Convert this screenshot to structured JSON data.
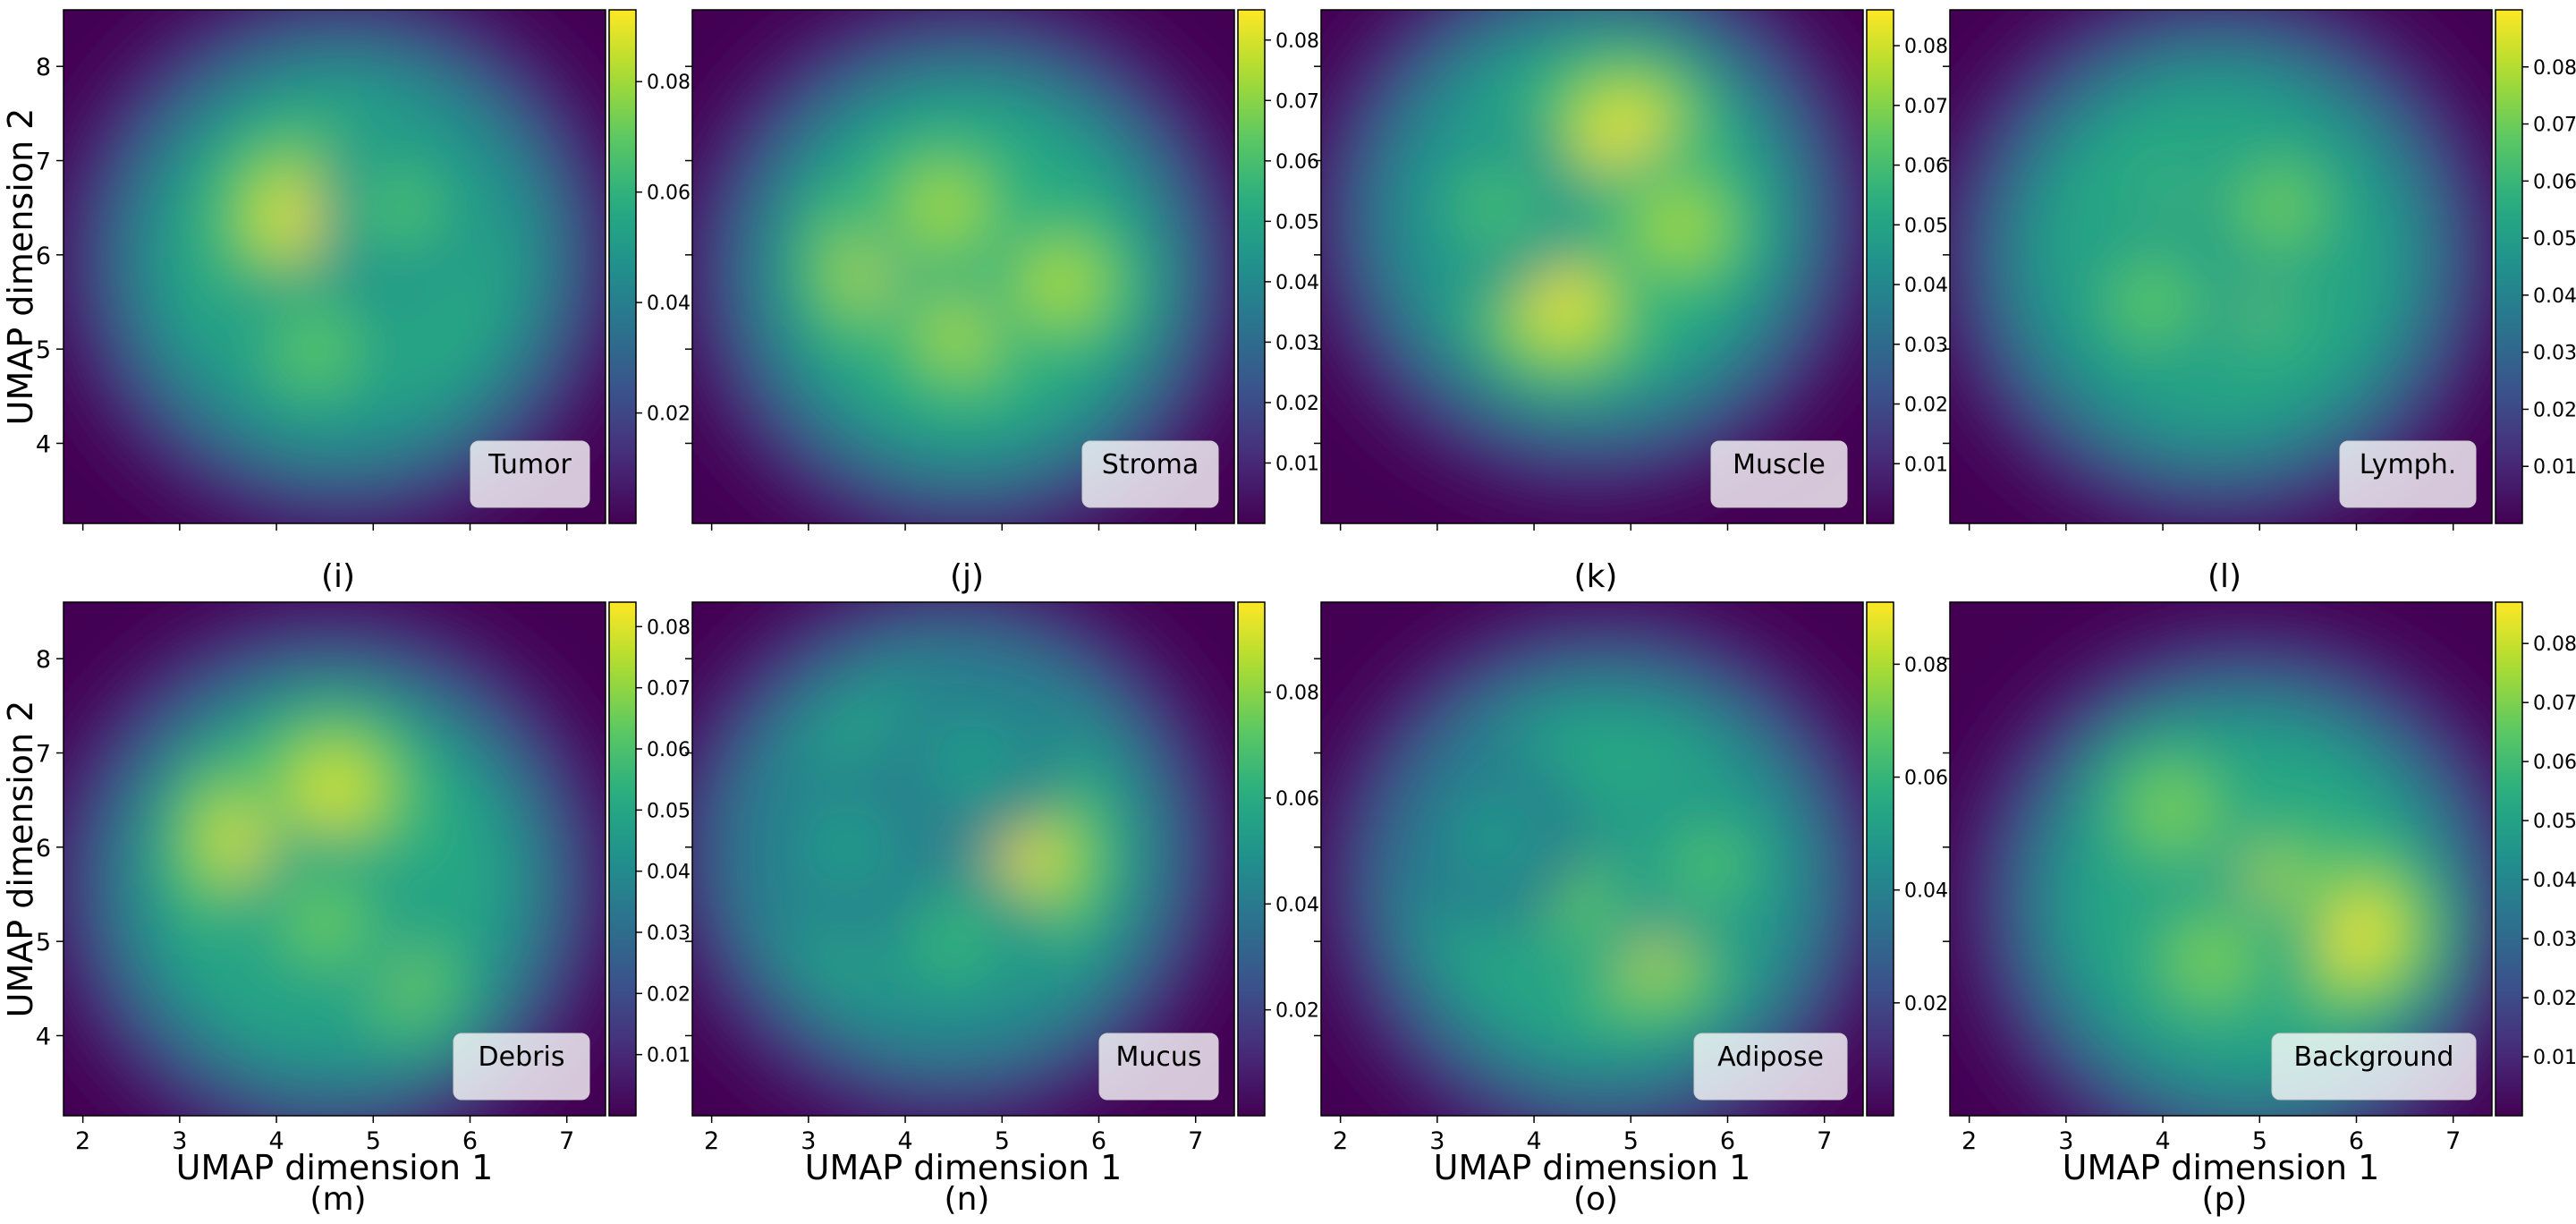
{
  "figure": {
    "panel_captions": [
      "(i)",
      "(j)",
      "(k)",
      "(l)",
      "(m)",
      "(n)",
      "(o)",
      "(p)"
    ]
  },
  "colormap": {
    "name": "viridis",
    "stops": [
      "#440154",
      "#472c7a",
      "#3b518b",
      "#2c718e",
      "#21908d",
      "#27ad81",
      "#5cc863",
      "#aadc32",
      "#fde725"
    ]
  },
  "chart_data": [
    {
      "type": "heatmap",
      "label": "Tumor",
      "caption": "(i)",
      "xlabel": "",
      "ylabel": "UMAP dimension 2",
      "xlim": [
        1.8,
        7.4
      ],
      "ylim": [
        3.15,
        8.6
      ],
      "xticks": [
        "2",
        "3",
        "4",
        "5",
        "6",
        "7"
      ],
      "yticks": [
        "4",
        "5",
        "6",
        "7",
        "8"
      ],
      "colorbar": {
        "min": 0.0,
        "max": 0.093,
        "ticks": [
          "0.02",
          "0.04",
          "0.06",
          "0.08"
        ]
      },
      "density_peaks": [
        {
          "x": 4.3,
          "y": 6.4,
          "value": 0.093
        },
        {
          "x": 4.4,
          "y": 5.0,
          "value": 0.07
        },
        {
          "x": 5.3,
          "y": 6.5,
          "value": 0.066
        }
      ]
    },
    {
      "type": "heatmap",
      "label": "Stroma",
      "caption": "(j)",
      "xlabel": "",
      "ylabel": "",
      "xlim": [
        1.8,
        7.4
      ],
      "ylim": [
        3.15,
        8.6
      ],
      "xticks": [
        "2",
        "3",
        "4",
        "5",
        "6",
        "7"
      ],
      "yticks": [
        "4",
        "5",
        "6",
        "7",
        "8"
      ],
      "colorbar": {
        "min": 0.0,
        "max": 0.085,
        "ticks": [
          "0.01",
          "0.02",
          "0.03",
          "0.04",
          "0.05",
          "0.06",
          "0.07",
          "0.08"
        ]
      },
      "density_peaks": [
        {
          "x": 3.9,
          "y": 5.9,
          "value": 0.085
        },
        {
          "x": 4.6,
          "y": 5.2,
          "value": 0.075
        },
        {
          "x": 5.6,
          "y": 5.7,
          "value": 0.075
        },
        {
          "x": 4.4,
          "y": 6.5,
          "value": 0.074
        }
      ]
    },
    {
      "type": "heatmap",
      "label": "Muscle",
      "caption": "(k)",
      "xlabel": "",
      "ylabel": "",
      "xlim": [
        1.8,
        7.4
      ],
      "ylim": [
        3.15,
        8.6
      ],
      "xticks": [
        "2",
        "3",
        "4",
        "5",
        "6",
        "7"
      ],
      "yticks": [
        "4",
        "5",
        "6",
        "7",
        "8"
      ],
      "colorbar": {
        "min": 0.0,
        "max": 0.086,
        "ticks": [
          "0.01",
          "0.02",
          "0.03",
          "0.04",
          "0.05",
          "0.06",
          "0.07",
          "0.08"
        ]
      },
      "density_peaks": [
        {
          "x": 4.95,
          "y": 7.25,
          "value": 0.086
        },
        {
          "x": 4.3,
          "y": 5.5,
          "value": 0.084
        },
        {
          "x": 5.5,
          "y": 6.3,
          "value": 0.075
        },
        {
          "x": 3.6,
          "y": 6.5,
          "value": 0.06
        }
      ]
    },
    {
      "type": "heatmap",
      "label": "Lymph.",
      "caption": "(l)",
      "xlabel": "",
      "ylabel": "",
      "xlim": [
        1.8,
        7.4
      ],
      "ylim": [
        3.15,
        8.6
      ],
      "xticks": [
        "2",
        "3",
        "4",
        "5",
        "6",
        "7"
      ],
      "yticks": [
        "4",
        "5",
        "6",
        "7",
        "8"
      ],
      "colorbar": {
        "min": 0.0,
        "max": 0.09,
        "ticks": [
          "0.01",
          "0.02",
          "0.03",
          "0.04",
          "0.05",
          "0.06",
          "0.07",
          "0.08"
        ]
      },
      "density_peaks": [
        {
          "x": 4.6,
          "y": 5.95,
          "value": 0.09
        },
        {
          "x": 5.2,
          "y": 6.5,
          "value": 0.07
        },
        {
          "x": 3.9,
          "y": 5.5,
          "value": 0.068
        }
      ]
    },
    {
      "type": "heatmap",
      "label": "Debris",
      "caption": "(m)",
      "xlabel": "UMAP dimension 1",
      "ylabel": "UMAP dimension 2",
      "xlim": [
        1.8,
        7.4
      ],
      "ylim": [
        3.15,
        8.6
      ],
      "xticks": [
        "2",
        "3",
        "4",
        "5",
        "6",
        "7"
      ],
      "yticks": [
        "4",
        "5",
        "6",
        "7",
        "8"
      ],
      "colorbar": {
        "min": 0.0,
        "max": 0.084,
        "ticks": [
          "0.01",
          "0.02",
          "0.03",
          "0.04",
          "0.05",
          "0.06",
          "0.07",
          "0.08"
        ]
      },
      "density_peaks": [
        {
          "x": 3.8,
          "y": 6.1,
          "value": 0.084
        },
        {
          "x": 4.6,
          "y": 6.6,
          "value": 0.08
        },
        {
          "x": 5.3,
          "y": 4.6,
          "value": 0.066
        },
        {
          "x": 4.5,
          "y": 5.2,
          "value": 0.065
        }
      ]
    },
    {
      "type": "heatmap",
      "label": "Mucus",
      "caption": "(n)",
      "xlabel": "UMAP dimension 1",
      "ylabel": "",
      "xlim": [
        1.8,
        7.4
      ],
      "ylim": [
        3.15,
        8.6
      ],
      "xticks": [
        "2",
        "3",
        "4",
        "5",
        "6",
        "7"
      ],
      "yticks": [
        "4",
        "5",
        "6",
        "7",
        "8"
      ],
      "colorbar": {
        "min": 0.0,
        "max": 0.097,
        "ticks": [
          "0.02",
          "0.04",
          "0.06",
          "0.08"
        ]
      },
      "density_peaks": [
        {
          "x": 5.15,
          "y": 5.9,
          "value": 0.097
        },
        {
          "x": 4.5,
          "y": 5.0,
          "value": 0.065
        },
        {
          "x": 3.4,
          "y": 6.0,
          "value": 0.055
        },
        {
          "x": 4.7,
          "y": 6.9,
          "value": 0.055
        }
      ]
    },
    {
      "type": "heatmap",
      "label": "Adipose",
      "caption": "(o)",
      "xlabel": "UMAP dimension 1",
      "ylabel": "",
      "xlim": [
        1.8,
        7.4
      ],
      "ylim": [
        3.15,
        8.6
      ],
      "xticks": [
        "2",
        "3",
        "4",
        "5",
        "6",
        "7"
      ],
      "yticks": [
        "4",
        "5",
        "6",
        "7",
        "8"
      ],
      "colorbar": {
        "min": 0.0,
        "max": 0.091,
        "ticks": [
          "0.02",
          "0.04",
          "0.06",
          "0.08"
        ]
      },
      "density_peaks": [
        {
          "x": 5.15,
          "y": 5.1,
          "value": 0.091
        },
        {
          "x": 4.4,
          "y": 5.5,
          "value": 0.07
        },
        {
          "x": 5.8,
          "y": 5.8,
          "value": 0.065
        },
        {
          "x": 3.6,
          "y": 6.1,
          "value": 0.05
        }
      ]
    },
    {
      "type": "heatmap",
      "label": "Background",
      "caption": "(p)",
      "xlabel": "UMAP dimension 1",
      "ylabel": "",
      "xlim": [
        1.8,
        7.4
      ],
      "ylim": [
        3.15,
        8.6
      ],
      "xticks": [
        "2",
        "3",
        "4",
        "5",
        "6",
        "7"
      ],
      "yticks": [
        "4",
        "5",
        "6",
        "7",
        "8"
      ],
      "colorbar": {
        "min": 0.0,
        "max": 0.087,
        "ticks": [
          "0.01",
          "0.02",
          "0.03",
          "0.04",
          "0.05",
          "0.06",
          "0.07",
          "0.08"
        ]
      },
      "density_peaks": [
        {
          "x": 5.95,
          "y": 5.1,
          "value": 0.087
        },
        {
          "x": 4.9,
          "y": 5.4,
          "value": 0.085
        },
        {
          "x": 4.1,
          "y": 6.4,
          "value": 0.07
        },
        {
          "x": 4.5,
          "y": 4.8,
          "value": 0.07
        }
      ]
    }
  ]
}
